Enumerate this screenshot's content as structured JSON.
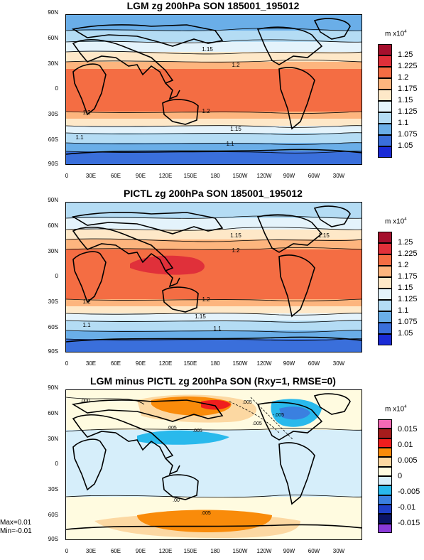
{
  "panels": [
    {
      "title": "LGM zg 200hPa SON 185001_195012",
      "unit": "m x10",
      "unit_exp": "4",
      "colorbar": {
        "labels": [
          "1.25",
          "1.225",
          "1.2",
          "1.175",
          "1.15",
          "1.125",
          "1.1",
          "1.075",
          "1.05"
        ],
        "colors": [
          "#a50f2d",
          "#e0303a",
          "#f46d43",
          "#fdb57e",
          "#fee8c8",
          "#e4f3fb",
          "#b4dcf4",
          "#6aaee8",
          "#3a6fdb",
          "#1a2bd6"
        ]
      },
      "contour_labels": [
        "1.15",
        "1.2",
        "1.2",
        "1.2",
        "1.15",
        "1.1",
        "1.1"
      ]
    },
    {
      "title": "PICTL zg 200hPa SON 185001_195012",
      "unit": "m x10",
      "unit_exp": "4",
      "colorbar": {
        "labels": [
          "1.25",
          "1.225",
          "1.2",
          "1.175",
          "1.15",
          "1.125",
          "1.1",
          "1.075",
          "1.05"
        ],
        "colors": [
          "#a50f2d",
          "#e0303a",
          "#f46d43",
          "#fdb57e",
          "#fee8c8",
          "#e4f3fb",
          "#b4dcf4",
          "#6aaee8",
          "#3a6fdb",
          "#1a2bd6"
        ]
      },
      "contour_labels": [
        "1.15",
        "1.15",
        "1.2",
        "1.2",
        "1.2",
        "1.15",
        "1.1",
        "1.1"
      ]
    },
    {
      "title": "LGM minus PICTL zg 200hPa SON (Rxy=1, RMSE=0)",
      "unit": "m x10",
      "unit_exp": "4",
      "colorbar": {
        "labels": [
          "0.015",
          "0.01",
          "0.005",
          "0",
          "-0.005",
          "-0.01",
          "-0.015"
        ],
        "colors": [
          "#f46ab5",
          "#a51c1c",
          "#f01e1e",
          "#f98b0a",
          "#fcd8a2",
          "#fffbe0",
          "#d6eefa",
          "#29b9ec",
          "#3a80e0",
          "#1e3fc8",
          "#0b1466",
          "#8a3ad8"
        ]
      },
      "contour_labels": [
        ".000",
        ".005",
        ".005",
        ".005",
        "-.005",
        ".005",
        ".00",
        ".005"
      ],
      "stats": {
        "max": "Max=0.01",
        "min": "Min=-0.01"
      }
    }
  ],
  "axes": {
    "lat_labels": [
      "90N",
      "60N",
      "30N",
      "0",
      "30S",
      "60S",
      "90S"
    ],
    "lon_labels": [
      "0",
      "30E",
      "60E",
      "90E",
      "120E",
      "150E",
      "180",
      "150W",
      "120W",
      "90W",
      "60W",
      "30W"
    ]
  }
}
